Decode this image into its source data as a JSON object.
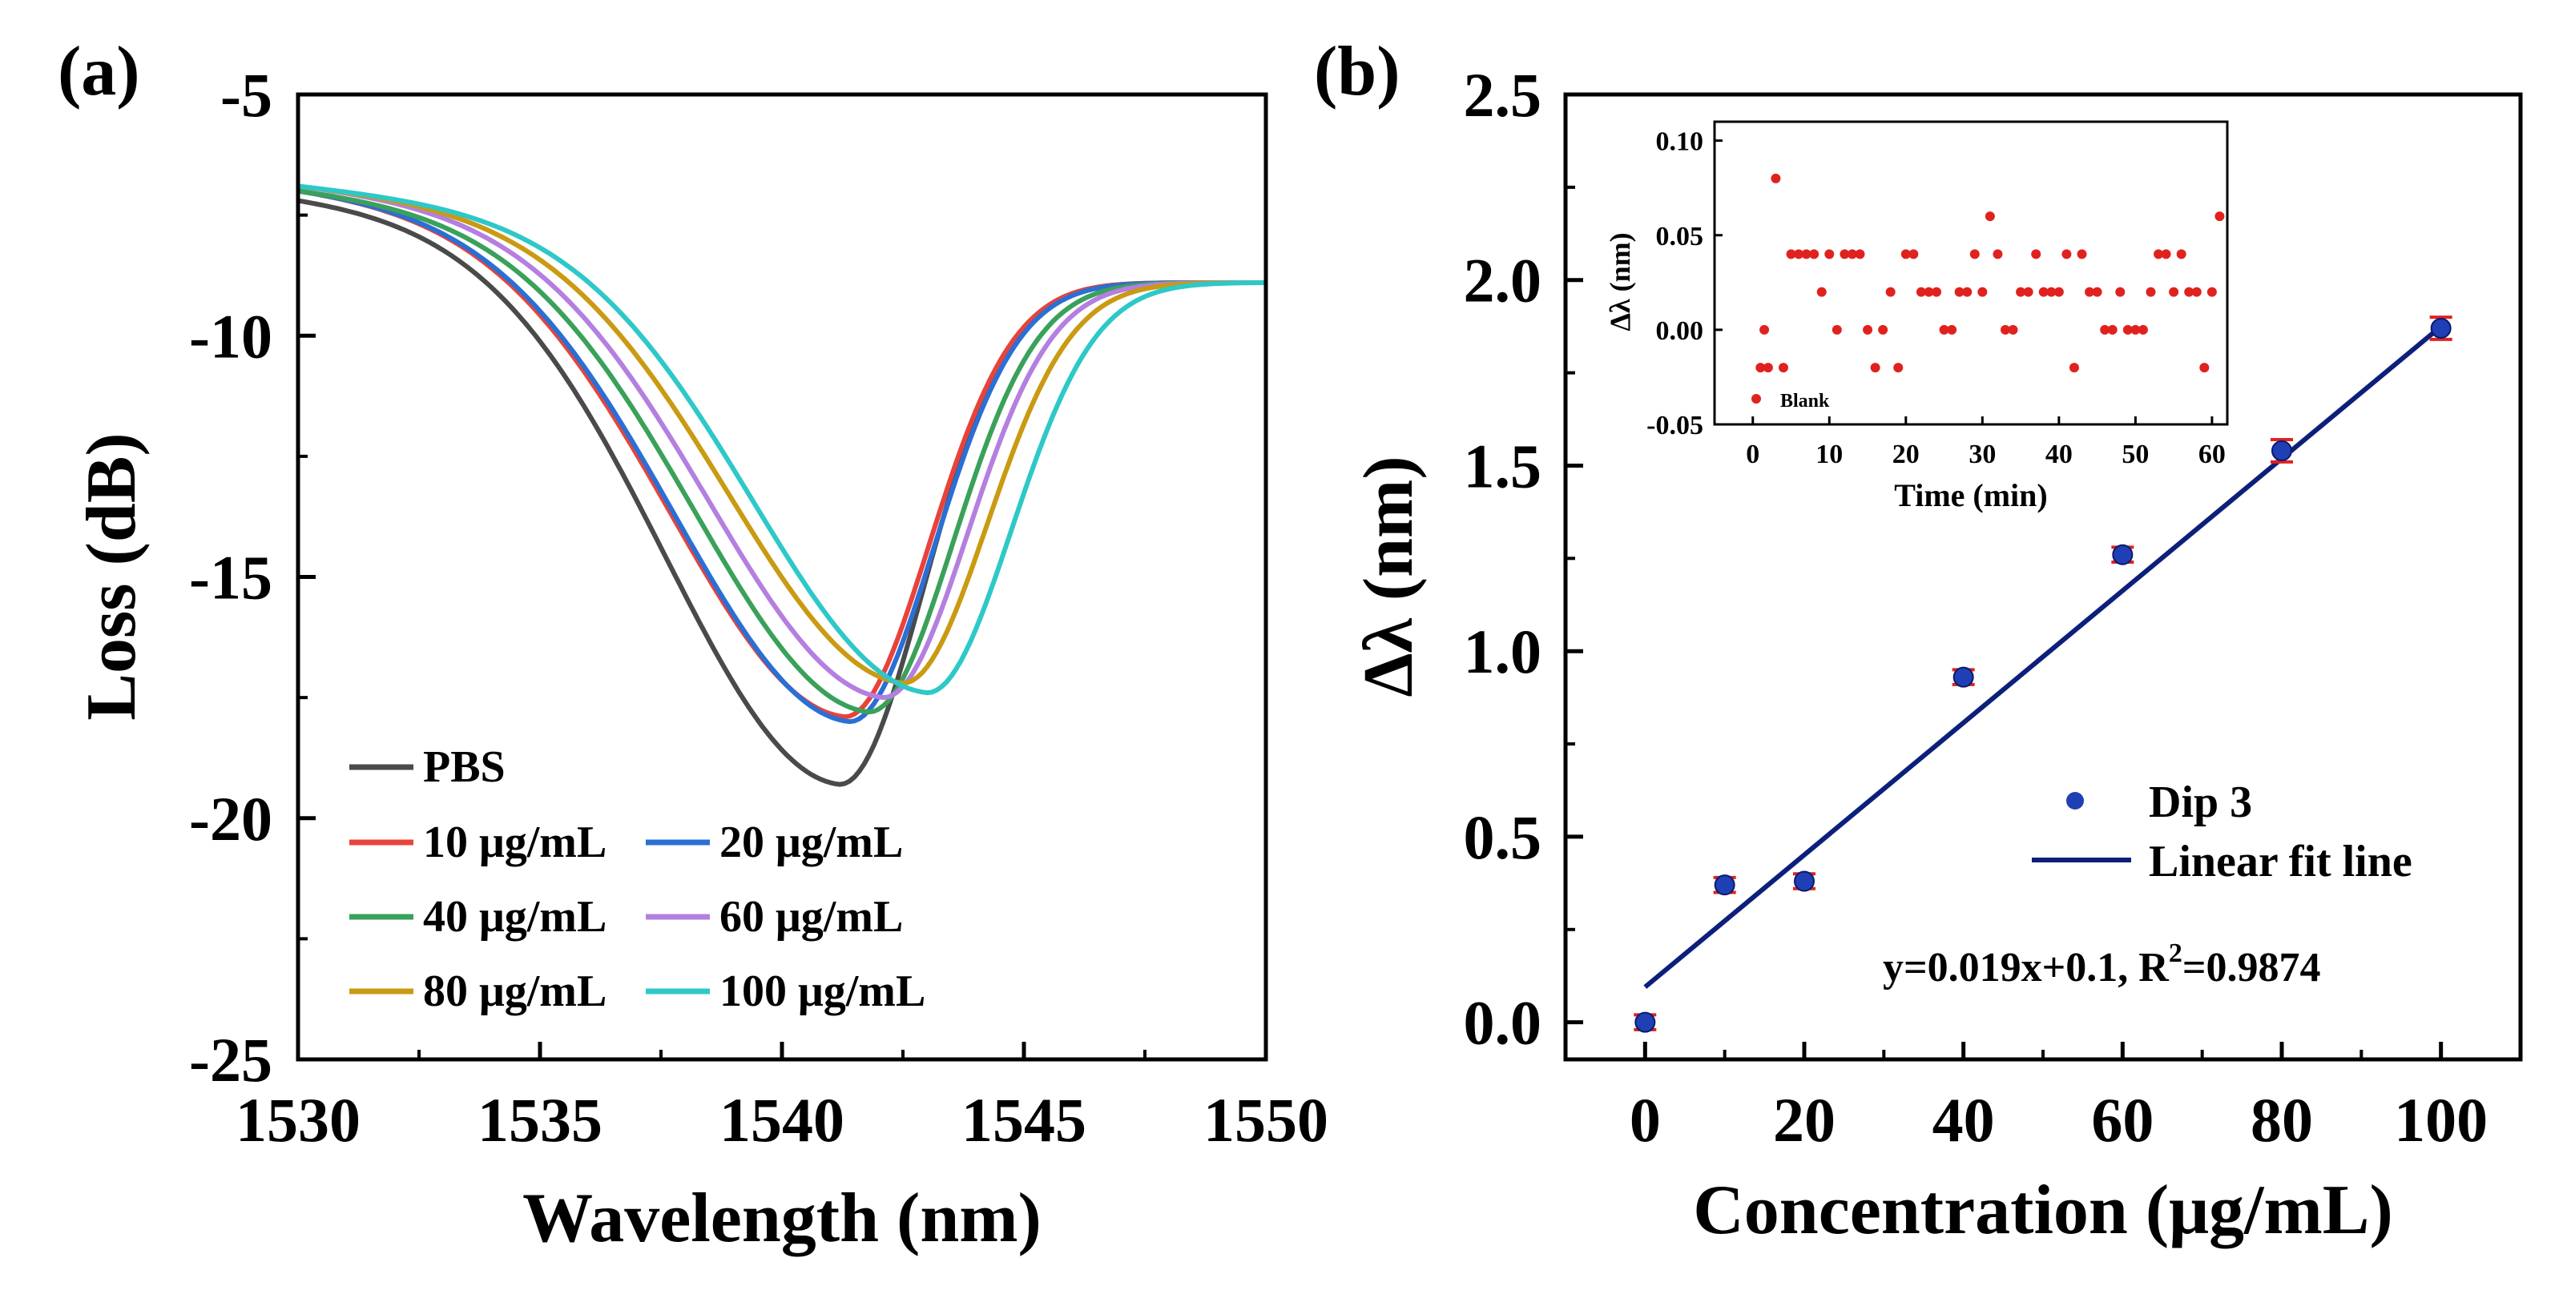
{
  "chart_data": [
    {
      "panel": "(a)",
      "type": "line",
      "title": "",
      "xlabel": "Wavelength (nm)",
      "ylabel": "Loss (dB)",
      "xlim": [
        1530,
        1550
      ],
      "ylim": [
        -25,
        -5
      ],
      "xticks": [
        "1530",
        "1535",
        "1540",
        "1545",
        "1550"
      ],
      "yticks": [
        "-5",
        "-10",
        "-15",
        "-20",
        "-25"
      ],
      "legend_position": "lower-left",
      "series": [
        {
          "name": "PBS",
          "color": "#4a4a4a",
          "center": 1541.2,
          "min": -19.3,
          "start": -7.2
        },
        {
          "name": "10 μg/mL",
          "color": "#e8433a",
          "center": 1541.3,
          "min": -17.9,
          "start": -7.0
        },
        {
          "name": "20 μg/mL",
          "color": "#2a6fd4",
          "center": 1541.4,
          "min": -18.0,
          "start": -7.0
        },
        {
          "name": "40 μg/mL",
          "color": "#3aa15a",
          "center": 1541.8,
          "min": -17.8,
          "start": -7.0
        },
        {
          "name": "60 μg/mL",
          "color": "#b47fe0",
          "center": 1542.1,
          "min": -17.5,
          "start": -6.9
        },
        {
          "name": "80 μg/mL",
          "color": "#c99a12",
          "center": 1542.5,
          "min": -17.2,
          "start": -6.9
        },
        {
          "name": "100 μg/mL",
          "color": "#2ec8c8",
          "center": 1543.0,
          "min": -17.4,
          "start": -6.9
        }
      ],
      "endpoint": {
        "x": 1550,
        "y": -8.9
      }
    },
    {
      "panel": "(b)",
      "type": "scatter",
      "title": "",
      "xlabel": "Concentration (μg/mL)",
      "ylabel": "Δλ (nm)",
      "xlim": [
        -10,
        110
      ],
      "ylim": [
        -0.1,
        2.5
      ],
      "xticks": [
        0,
        20,
        40,
        60,
        80,
        100
      ],
      "yticks": [
        0.0,
        0.5,
        1.0,
        1.5,
        2.0,
        2.5
      ],
      "series": [
        {
          "name": "Dip 3",
          "color": "#1f3fb5",
          "error_color": "#e0221f",
          "x": [
            0,
            10,
            20,
            40,
            60,
            80,
            100
          ],
          "y": [
            0.0,
            0.37,
            0.38,
            0.93,
            1.26,
            1.54,
            1.87
          ],
          "err": [
            0.02,
            0.02,
            0.02,
            0.02,
            0.02,
            0.03,
            0.03
          ]
        }
      ],
      "fit": {
        "name": "Linear fit line",
        "color": "#0c1f7a",
        "slope": 0.019,
        "intercept": 0.1,
        "equation_prefix": "y=0.019x+0.1, R",
        "equation_sup": "2",
        "equation_suffix": "=0.9874"
      },
      "legend_position": "lower-right",
      "inset": {
        "type": "scatter",
        "xlabel": "Time (min)",
        "ylabel": "Δλ (nm)",
        "xlim": [
          -5,
          62
        ],
        "ylim": [
          -0.05,
          0.11
        ],
        "xticks": [
          0,
          10,
          20,
          30,
          40,
          50,
          60
        ],
        "yticks": [
          "-0.05",
          "0.00",
          "0.05",
          "0.10"
        ],
        "legend_label": "Blank",
        "color": "#e0221f",
        "points": [
          [
            1,
            -0.02
          ],
          [
            1.5,
            0.0
          ],
          [
            2,
            -0.02
          ],
          [
            3,
            0.08
          ],
          [
            4,
            -0.02
          ],
          [
            5,
            0.04
          ],
          [
            6,
            0.04
          ],
          [
            7,
            0.04
          ],
          [
            8,
            0.04
          ],
          [
            9,
            0.02
          ],
          [
            10,
            0.04
          ],
          [
            11,
            0.0
          ],
          [
            12,
            0.04
          ],
          [
            13,
            0.04
          ],
          [
            14,
            0.04
          ],
          [
            15,
            0.0
          ],
          [
            16,
            -0.02
          ],
          [
            17,
            0.0
          ],
          [
            18,
            0.02
          ],
          [
            19,
            -0.02
          ],
          [
            20,
            0.04
          ],
          [
            21,
            0.04
          ],
          [
            22,
            0.02
          ],
          [
            23,
            0.02
          ],
          [
            24,
            0.02
          ],
          [
            25,
            0.0
          ],
          [
            26,
            0.0
          ],
          [
            27,
            0.02
          ],
          [
            28,
            0.02
          ],
          [
            29,
            0.04
          ],
          [
            30,
            0.02
          ],
          [
            31,
            0.06
          ],
          [
            32,
            0.04
          ],
          [
            33,
            0.0
          ],
          [
            34,
            0.0
          ],
          [
            35,
            0.02
          ],
          [
            36,
            0.02
          ],
          [
            37,
            0.04
          ],
          [
            38,
            0.02
          ],
          [
            39,
            0.02
          ],
          [
            40,
            0.02
          ],
          [
            41,
            0.04
          ],
          [
            42,
            -0.02
          ],
          [
            43,
            0.04
          ],
          [
            44,
            0.02
          ],
          [
            45,
            0.02
          ],
          [
            46,
            0.0
          ],
          [
            47,
            0.0
          ],
          [
            48,
            0.02
          ],
          [
            49,
            0.0
          ],
          [
            50,
            0.0
          ],
          [
            51,
            0.0
          ],
          [
            52,
            0.02
          ],
          [
            53,
            0.04
          ],
          [
            54,
            0.04
          ],
          [
            55,
            0.02
          ],
          [
            56,
            0.04
          ],
          [
            57,
            0.02
          ],
          [
            58,
            0.02
          ],
          [
            59,
            -0.02
          ],
          [
            60,
            0.02
          ],
          [
            61,
            0.06
          ]
        ]
      }
    }
  ]
}
